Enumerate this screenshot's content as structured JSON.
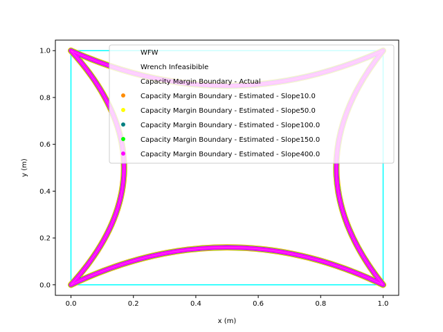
{
  "chart_data": {
    "type": "scatter",
    "title": "",
    "xlabel": "x (m)",
    "ylabel": "y (m)",
    "xlim": [
      -0.05,
      1.05
    ],
    "ylim": [
      -0.045,
      1.045
    ],
    "xticks": [
      0.0,
      0.2,
      0.4,
      0.6,
      0.8,
      1.0
    ],
    "yticks": [
      0.0,
      0.2,
      0.4,
      0.6,
      0.8,
      1.0
    ],
    "xtick_labels": [
      "0.0",
      "0.2",
      "0.4",
      "0.6",
      "0.8",
      "1.0"
    ],
    "ytick_labels": [
      "0.0",
      "0.2",
      "0.4",
      "0.6",
      "0.8",
      "1.0"
    ],
    "grid": false,
    "legend_position": "upper right",
    "wfw_square": {
      "corners": [
        [
          0,
          0
        ],
        [
          1,
          0
        ],
        [
          1,
          1
        ],
        [
          0,
          1
        ]
      ],
      "color": "#00ffff"
    },
    "boundary_shape": {
      "corners": [
        [
          0,
          0
        ],
        [
          1,
          0
        ],
        [
          1,
          1
        ],
        [
          0,
          1
        ]
      ],
      "edge_sag": {
        "bottom": 0.16,
        "top": 0.15,
        "left": 0.17,
        "right": 0.15
      }
    },
    "series": [
      {
        "name": "WFW",
        "marker": "none",
        "color": "#ffffff"
      },
      {
        "name": "Wrench Infeasibible",
        "marker": "none",
        "color": "#ffffff"
      },
      {
        "name": "Capacity Margin Boundary - Actual",
        "marker": "none",
        "color": "#ffffff"
      },
      {
        "name": "Capacity Margin Boundary - Estimated - Slope10.0",
        "marker": "dot",
        "color": "#ff8c00"
      },
      {
        "name": "Capacity Margin Boundary - Estimated - Slope50.0",
        "marker": "dot",
        "color": "#ffff00"
      },
      {
        "name": "Capacity Margin Boundary - Estimated - Slope100.0",
        "marker": "dot",
        "color": "#008080"
      },
      {
        "name": "Capacity Margin Boundary - Estimated - Slope150.0",
        "marker": "dot",
        "color": "#00ff00"
      },
      {
        "name": "Capacity Margin Boundary - Estimated - Slope400.0",
        "marker": "dot",
        "color": "#ff00ff"
      }
    ]
  }
}
